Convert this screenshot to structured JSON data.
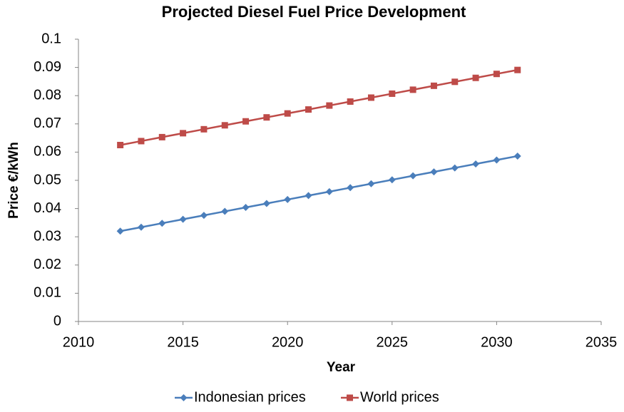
{
  "chart_data": {
    "type": "line",
    "title": "Projected Diesel Fuel Price Development",
    "x_label": "Year",
    "y_label": "Price €/kWh",
    "x": [
      2012,
      2013,
      2014,
      2015,
      2016,
      2017,
      2018,
      2019,
      2020,
      2021,
      2022,
      2023,
      2024,
      2025,
      2026,
      2027,
      2028,
      2029,
      2030,
      2031
    ],
    "series": [
      {
        "name": "Indonesian prices",
        "color": "#4a7ebb",
        "marker": "diamond",
        "values": [
          0.032,
          0.0334,
          0.0348,
          0.0362,
          0.0376,
          0.039,
          0.0404,
          0.0418,
          0.0432,
          0.0446,
          0.046,
          0.0474,
          0.0488,
          0.0502,
          0.0516,
          0.053,
          0.0544,
          0.0558,
          0.0572,
          0.0586
        ]
      },
      {
        "name": "World prices",
        "color": "#be4b48",
        "marker": "square",
        "values": [
          0.0625,
          0.0639,
          0.0653,
          0.0667,
          0.0681,
          0.0695,
          0.0709,
          0.0723,
          0.0737,
          0.0751,
          0.0765,
          0.0779,
          0.0793,
          0.0807,
          0.0821,
          0.0835,
          0.0849,
          0.0863,
          0.0877,
          0.0891
        ]
      }
    ],
    "xlim": [
      2010,
      2035
    ],
    "xticks": [
      2010,
      2015,
      2020,
      2025,
      2030,
      2035
    ],
    "ylim": [
      0,
      0.1
    ],
    "yticks": [
      0,
      0.01,
      0.02,
      0.03,
      0.04,
      0.05,
      0.06,
      0.07,
      0.08,
      0.09,
      0.1
    ],
    "grid": false,
    "legend": "bottom"
  }
}
